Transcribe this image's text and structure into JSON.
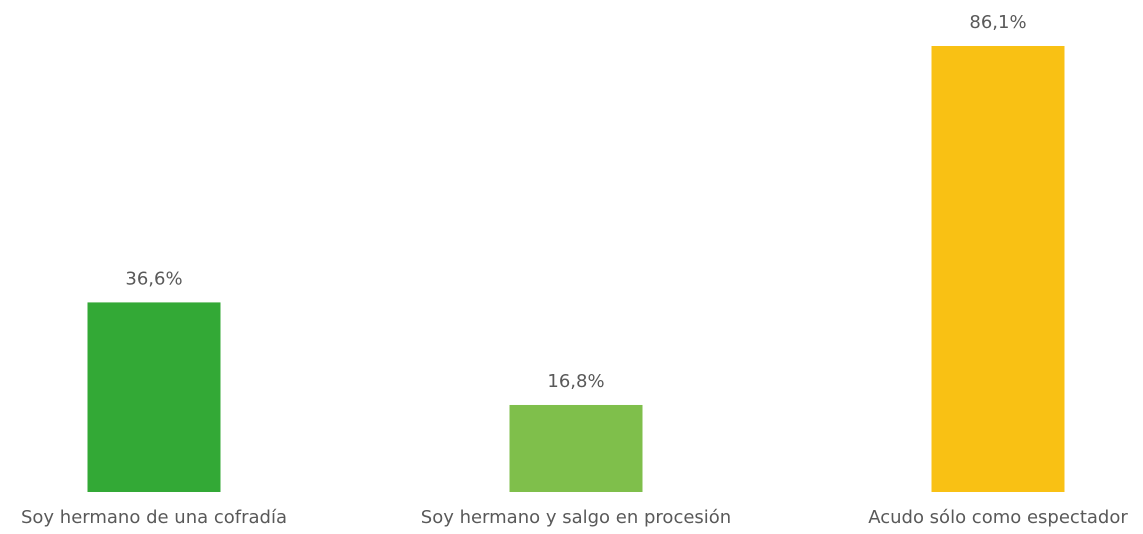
{
  "chart_data": {
    "type": "bar",
    "categories": [
      "Soy hermano de una cofradía",
      "Soy hermano y salgo en procesión",
      "Acudo sólo como espectador"
    ],
    "values": [
      36.6,
      16.8,
      86.1
    ],
    "value_labels": [
      "36,6%",
      "16,8%",
      "86,1%"
    ],
    "colors": [
      "#33a936",
      "#7fbf4b",
      "#f9c114"
    ]
  }
}
